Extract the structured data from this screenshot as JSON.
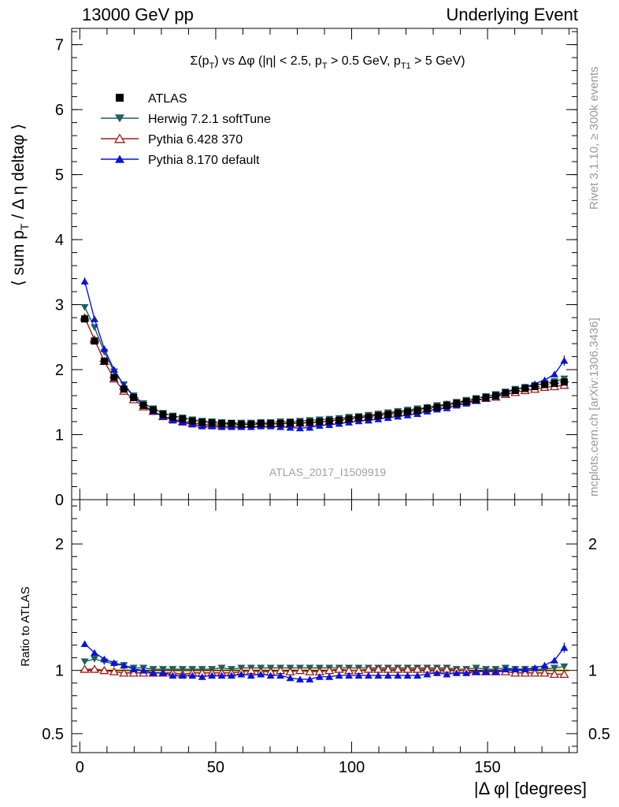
{
  "header": {
    "left": "13000 GeV pp",
    "right": "Underlying Event"
  },
  "side_labels": {
    "rivet": "Rivet 3.1.10, ≥ 300k events",
    "mcplots": "mcplots.cern.ch [arXiv:1306.3436]"
  },
  "chart_data": [
    {
      "type": "scatter",
      "title": "Σ(p_T) vs Δφ (|η| < 2.5, p_T > 0.5 GeV, p_T1 > 5 GeV)",
      "title_parts": {
        "sigma": "Σ(p",
        "t_sub": "T",
        "mid": ") vs Δφ (|η| < 2.5, p",
        "t_sub2": "T",
        "mid2": " > 0.5 GeV, p",
        "t1_sub": "T1",
        "end": " > 5 GeV)"
      },
      "ylabel": "⟨ sum p_T / Δ η deltaφ ⟩",
      "ylabel_parts": {
        "a": "⟨ sum p",
        "sub": "T",
        "b": " / Δ η deltaφ ⟩"
      },
      "watermark": "ATLAS_2017_I1509919",
      "xlim": [
        -3,
        183
      ],
      "ylim": [
        0,
        7.25
      ],
      "yticks": [
        "0",
        "1",
        "2",
        "3",
        "4",
        "5",
        "6",
        "7"
      ],
      "legend_position": "top-left",
      "legend": [
        {
          "name": "ATLAS",
          "marker": "square",
          "color": "#000000"
        },
        {
          "name": "Herwig 7.2.1 softTune",
          "marker": "triangle-down",
          "color": "#1f5f5f"
        },
        {
          "name": "Pythia 6.428 370",
          "marker": "triangle-open",
          "color": "#a31a1a"
        },
        {
          "name": "Pythia 8.170 default",
          "marker": "triangle-up",
          "color": "#0a14d6"
        }
      ],
      "x": [
        1.8,
        5.4,
        9.0,
        12.6,
        16.2,
        19.8,
        23.4,
        27.0,
        30.6,
        34.2,
        37.8,
        41.4,
        45.0,
        48.6,
        52.2,
        55.8,
        59.4,
        63.0,
        66.6,
        70.2,
        73.8,
        77.4,
        81.0,
        84.6,
        88.2,
        91.8,
        95.4,
        99.0,
        102.6,
        106.2,
        109.8,
        113.4,
        117.0,
        120.6,
        124.2,
        127.8,
        131.4,
        135.0,
        138.6,
        142.2,
        145.8,
        149.4,
        153.0,
        156.6,
        160.2,
        163.8,
        167.4,
        171.0,
        174.6,
        178.2
      ],
      "series": [
        {
          "name": "ATLAS",
          "color": "#000000",
          "marker": "square",
          "values": [
            2.78,
            2.44,
            2.13,
            1.88,
            1.7,
            1.57,
            1.45,
            1.38,
            1.31,
            1.27,
            1.24,
            1.21,
            1.19,
            1.18,
            1.17,
            1.17,
            1.16,
            1.16,
            1.17,
            1.17,
            1.17,
            1.18,
            1.18,
            1.19,
            1.2,
            1.21,
            1.22,
            1.24,
            1.26,
            1.27,
            1.29,
            1.31,
            1.33,
            1.35,
            1.37,
            1.4,
            1.42,
            1.45,
            1.48,
            1.51,
            1.54,
            1.57,
            1.6,
            1.64,
            1.68,
            1.71,
            1.74,
            1.77,
            1.79,
            1.81
          ]
        },
        {
          "name": "Herwig 7.2.1 softTune",
          "color": "#1f5f5f",
          "marker": "triangle-down",
          "values": [
            2.96,
            2.65,
            2.27,
            1.97,
            1.77,
            1.6,
            1.48,
            1.4,
            1.33,
            1.29,
            1.26,
            1.23,
            1.21,
            1.2,
            1.19,
            1.18,
            1.18,
            1.18,
            1.19,
            1.19,
            1.2,
            1.2,
            1.21,
            1.22,
            1.23,
            1.24,
            1.25,
            1.27,
            1.28,
            1.3,
            1.32,
            1.34,
            1.36,
            1.38,
            1.4,
            1.42,
            1.45,
            1.47,
            1.5,
            1.53,
            1.56,
            1.59,
            1.62,
            1.66,
            1.7,
            1.73,
            1.76,
            1.79,
            1.82,
            1.86
          ]
        },
        {
          "name": "Pythia 6.428 370",
          "color": "#a31a1a",
          "marker": "triangle-open",
          "values": [
            2.8,
            2.46,
            2.13,
            1.86,
            1.67,
            1.54,
            1.43,
            1.36,
            1.28,
            1.24,
            1.2,
            1.18,
            1.16,
            1.15,
            1.15,
            1.15,
            1.15,
            1.16,
            1.16,
            1.16,
            1.17,
            1.17,
            1.18,
            1.18,
            1.19,
            1.21,
            1.23,
            1.24,
            1.26,
            1.28,
            1.3,
            1.32,
            1.34,
            1.36,
            1.38,
            1.41,
            1.43,
            1.46,
            1.48,
            1.51,
            1.53,
            1.56,
            1.58,
            1.62,
            1.65,
            1.68,
            1.7,
            1.73,
            1.74,
            1.76
          ]
        },
        {
          "name": "Pythia 8.170 default",
          "color": "#0a14d6",
          "marker": "triangle-up",
          "values": [
            3.36,
            2.78,
            2.32,
            2.0,
            1.76,
            1.59,
            1.45,
            1.36,
            1.28,
            1.22,
            1.19,
            1.16,
            1.13,
            1.13,
            1.12,
            1.12,
            1.12,
            1.12,
            1.13,
            1.13,
            1.12,
            1.11,
            1.1,
            1.11,
            1.14,
            1.15,
            1.17,
            1.19,
            1.21,
            1.22,
            1.24,
            1.26,
            1.28,
            1.3,
            1.32,
            1.36,
            1.39,
            1.41,
            1.45,
            1.48,
            1.52,
            1.56,
            1.59,
            1.65,
            1.69,
            1.73,
            1.78,
            1.84,
            1.93,
            2.14
          ]
        }
      ]
    },
    {
      "type": "scatter",
      "ylabel": "Ratio to ATLAS",
      "xlabel": "|Δ φ| [degrees]",
      "xlim": [
        -3,
        183
      ],
      "ylim": [
        0.35,
        2.35
      ],
      "yticks": [
        "0.5",
        "1",
        "2"
      ],
      "ytick_values": [
        0.5,
        1,
        2
      ],
      "xticks": [
        "0",
        "50",
        "100",
        "150"
      ],
      "xtick_values": [
        0,
        50,
        100,
        150
      ],
      "series": [
        {
          "name": "Herwig 7.2.1 softTune",
          "color": "#1f5f5f",
          "marker": "triangle-down",
          "values": [
            1.07,
            1.09,
            1.07,
            1.05,
            1.04,
            1.02,
            1.02,
            1.01,
            1.01,
            1.01,
            1.01,
            1.01,
            1.01,
            1.01,
            1.02,
            1.01,
            1.02,
            1.02,
            1.02,
            1.02,
            1.02,
            1.02,
            1.02,
            1.02,
            1.02,
            1.02,
            1.02,
            1.02,
            1.02,
            1.02,
            1.02,
            1.02,
            1.02,
            1.02,
            1.02,
            1.02,
            1.02,
            1.02,
            1.01,
            1.01,
            1.02,
            1.01,
            1.01,
            1.02,
            1.01,
            1.01,
            1.01,
            1.01,
            1.02,
            1.03
          ]
        },
        {
          "name": "Pythia 6.428 370",
          "color": "#a31a1a",
          "marker": "triangle-open",
          "values": [
            1.01,
            1.01,
            1.0,
            0.99,
            0.98,
            0.98,
            0.98,
            0.98,
            0.98,
            0.98,
            0.97,
            0.98,
            0.98,
            0.98,
            0.98,
            0.98,
            0.99,
            1.0,
            0.99,
            0.99,
            1.0,
            0.99,
            1.0,
            0.99,
            0.99,
            1.0,
            1.01,
            1.0,
            1.0,
            1.01,
            1.01,
            1.01,
            1.01,
            1.01,
            1.01,
            1.01,
            1.01,
            1.01,
            1.0,
            1.0,
            0.99,
            0.99,
            0.99,
            0.99,
            0.98,
            0.98,
            0.98,
            0.98,
            0.97,
            0.97
          ]
        },
        {
          "name": "Pythia 8.170 default",
          "color": "#0a14d6",
          "marker": "triangle-up",
          "values": [
            1.21,
            1.14,
            1.09,
            1.06,
            1.04,
            1.01,
            1.0,
            0.98,
            0.98,
            0.96,
            0.96,
            0.96,
            0.95,
            0.96,
            0.96,
            0.96,
            0.97,
            0.96,
            0.97,
            0.96,
            0.96,
            0.94,
            0.93,
            0.93,
            0.95,
            0.95,
            0.96,
            0.96,
            0.96,
            0.96,
            0.96,
            0.96,
            0.96,
            0.96,
            0.96,
            0.97,
            0.98,
            0.97,
            0.98,
            0.98,
            0.99,
            0.99,
            0.99,
            1.01,
            1.01,
            1.01,
            1.02,
            1.04,
            1.08,
            1.18
          ]
        }
      ]
    }
  ]
}
